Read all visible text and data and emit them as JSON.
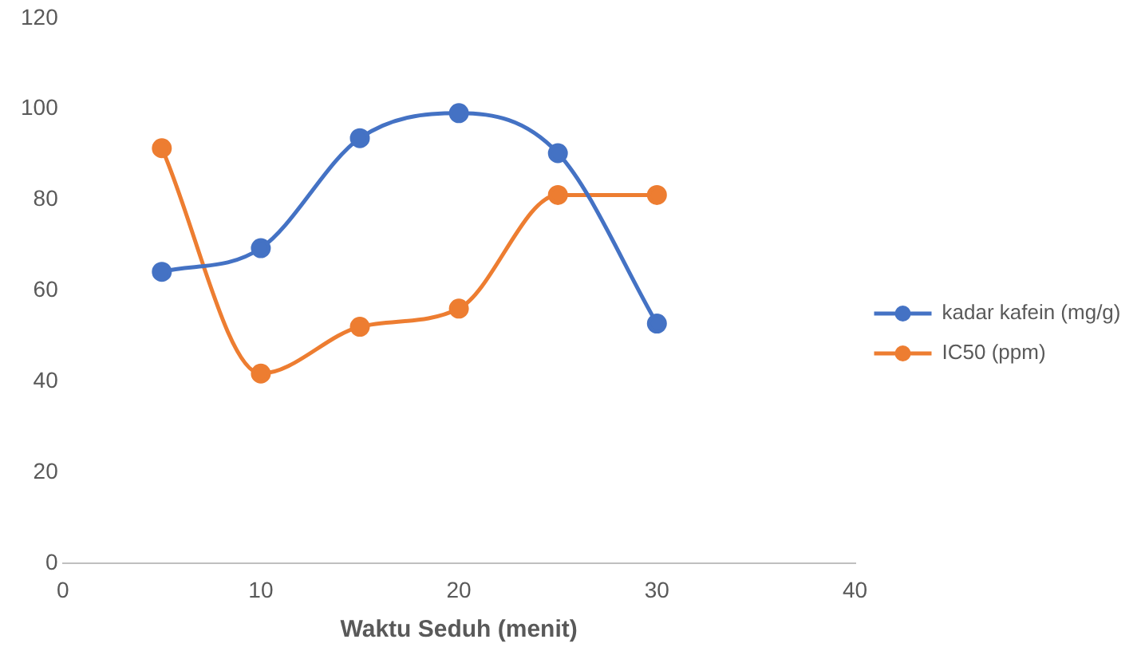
{
  "chart_data": {
    "type": "line",
    "xlabel": "Waktu Seduh (menit)",
    "x": [
      5,
      10,
      15,
      20,
      25,
      30
    ],
    "series": [
      {
        "name": "kadar kafein (mg/g)",
        "color": "#4472c4",
        "values": [
          64.2,
          69.4,
          93.6,
          99.1,
          90.3,
          52.8
        ]
      },
      {
        "name": "IC50 (ppm)",
        "color": "#ed7d31",
        "values": [
          91.4,
          41.8,
          52.1,
          56.1,
          81.1,
          81.1
        ]
      }
    ],
    "xlim": [
      0,
      40
    ],
    "xticks": [
      0,
      10,
      20,
      30,
      40
    ],
    "ylim": [
      0,
      120
    ],
    "yticks": [
      0,
      20,
      40,
      60,
      80,
      100,
      120
    ],
    "grid": false,
    "legend": "right",
    "marker": "circle",
    "line_style": "solid"
  }
}
